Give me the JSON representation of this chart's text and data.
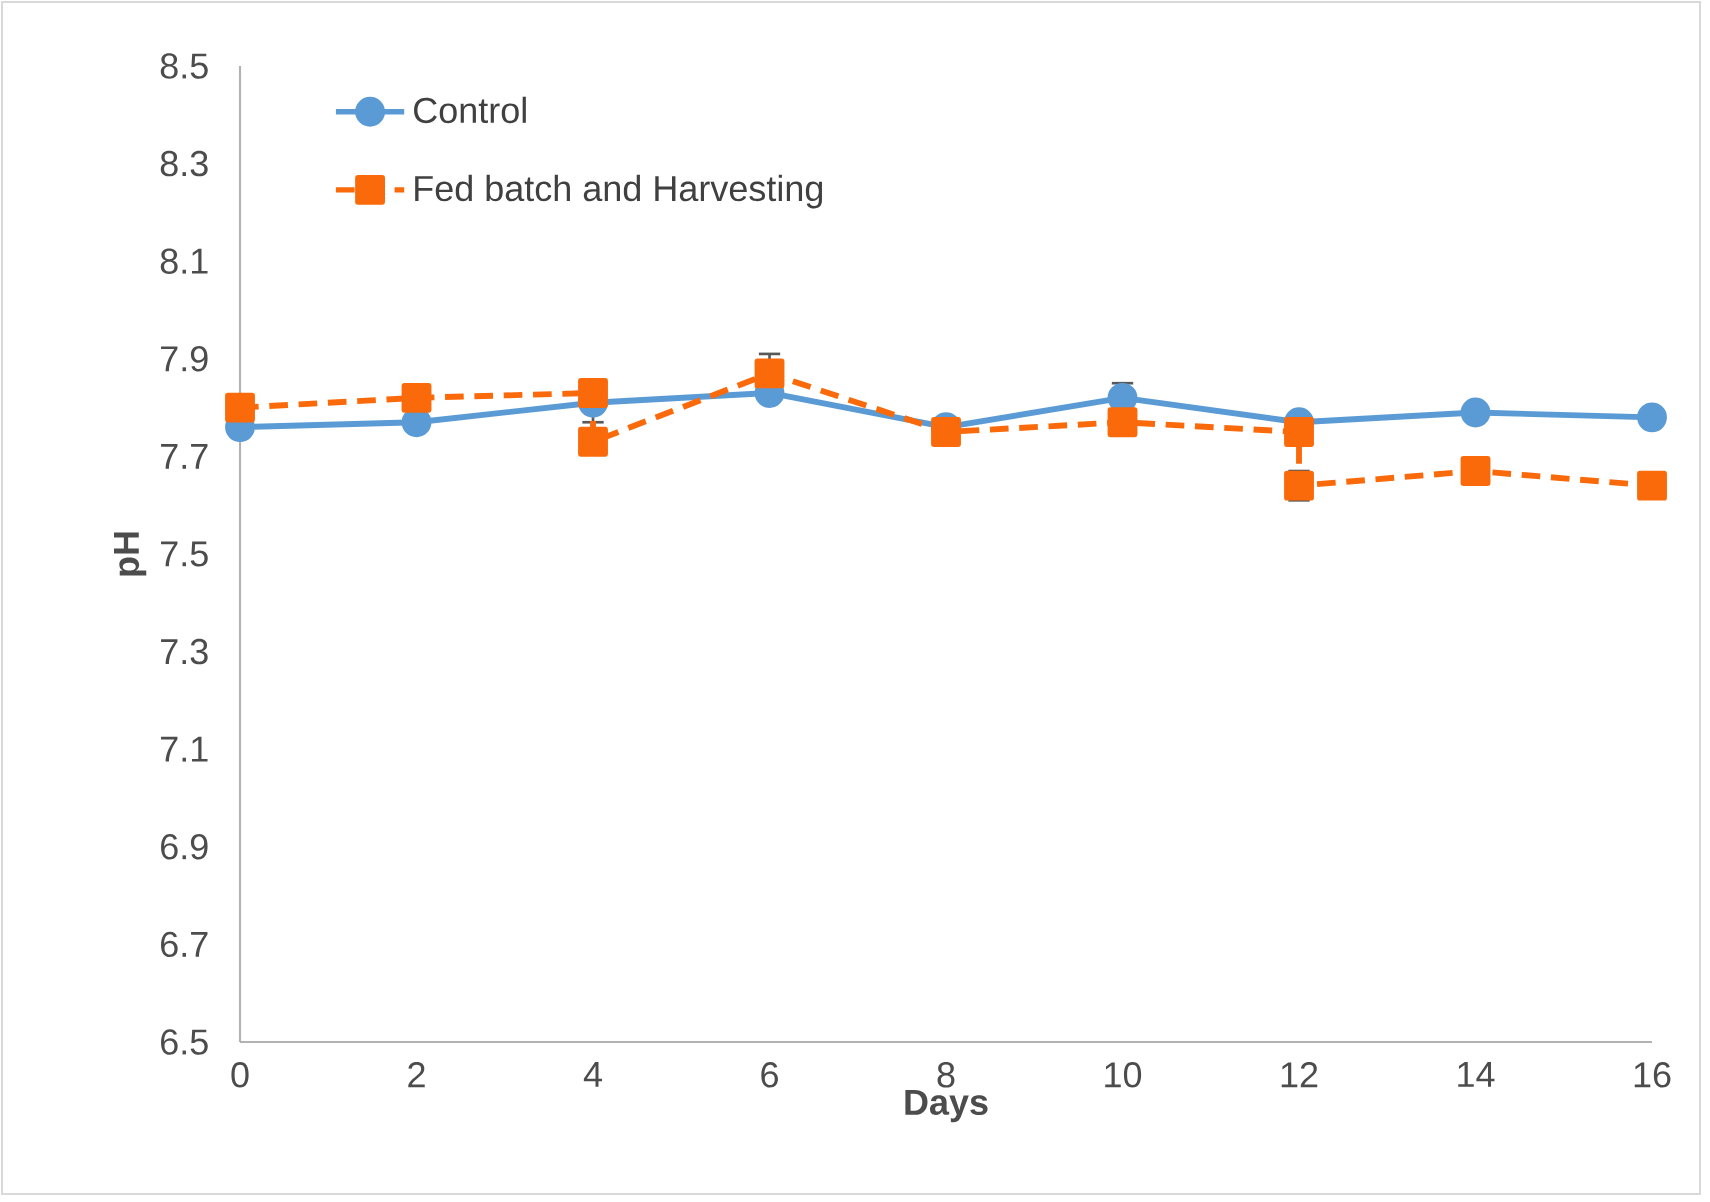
{
  "chart_data": {
    "type": "line",
    "xlabel": "Days",
    "ylabel": "pH",
    "xlim": [
      0,
      16
    ],
    "xticks": [
      0,
      2,
      4,
      6,
      8,
      10,
      12,
      14,
      16
    ],
    "ylim": [
      6.5,
      8.5
    ],
    "yticks": [
      6.5,
      6.7,
      6.9,
      7.1,
      7.3,
      7.5,
      7.7,
      7.9,
      8.1,
      8.3,
      8.5
    ],
    "grid": false,
    "legend": "top left",
    "series": [
      {
        "name": "Control",
        "color": "#5b9bd5",
        "marker": "circle",
        "line_style": "solid",
        "x": [
          0,
          2,
          4,
          6,
          8,
          10,
          12,
          14,
          16
        ],
        "values": [
          7.76,
          7.77,
          7.81,
          7.83,
          7.76,
          7.82,
          7.77,
          7.79,
          7.78
        ],
        "errors": [
          null,
          null,
          0.04,
          null,
          null,
          0.03,
          null,
          null,
          null
        ]
      },
      {
        "name": "Fed batch and Harvesting",
        "color": "#fa6a0a",
        "marker": "square",
        "line_style": "dashed",
        "x": [
          0,
          2,
          4,
          4,
          6,
          8,
          10,
          12,
          12,
          14,
          16
        ],
        "values": [
          7.8,
          7.82,
          7.83,
          7.73,
          7.87,
          7.75,
          7.77,
          7.75,
          7.64,
          7.67,
          7.64
        ],
        "errors": [
          null,
          null,
          null,
          null,
          0.04,
          null,
          null,
          null,
          0.03,
          null,
          null
        ]
      }
    ]
  }
}
